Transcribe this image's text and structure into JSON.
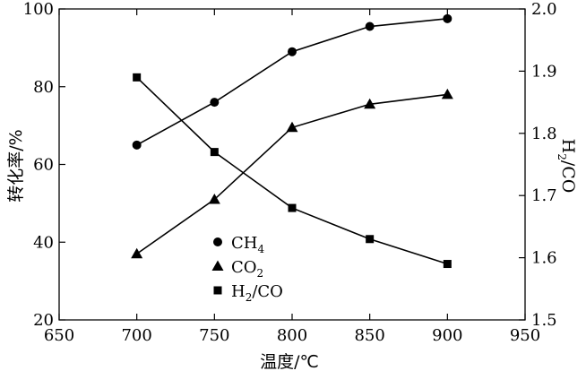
{
  "chart_data": {
    "type": "line",
    "x": [
      700,
      750,
      800,
      850,
      900
    ],
    "xlabel": "温度/℃",
    "ylabel_left": "转化率/%",
    "ylabel_right": {
      "main": "H",
      "sub": "2",
      "rest": "/CO"
    },
    "xlim": [
      650,
      950
    ],
    "ylim_left": [
      20,
      100
    ],
    "ylim_right": [
      1.5,
      2.0
    ],
    "x_ticks": [
      650,
      700,
      750,
      800,
      850,
      900,
      950
    ],
    "y_left_ticks": [
      20,
      40,
      60,
      80,
      100
    ],
    "y_right_ticks": [
      "1.5",
      "1.6",
      "1.7",
      "1.8",
      "1.9",
      "2.0"
    ],
    "grid": false,
    "legend_position": "lower-center",
    "series": [
      {
        "name": "CH",
        "sub": "4",
        "axis": "left",
        "marker": "circle",
        "values": [
          65,
          76,
          89,
          95.5,
          97.5
        ]
      },
      {
        "name": "CO",
        "sub": "2",
        "axis": "left",
        "marker": "triangle",
        "values": [
          37,
          51,
          69.5,
          75.5,
          78
        ]
      },
      {
        "name": "H",
        "sub": "2",
        "suffix": "/CO",
        "axis": "right",
        "marker": "square",
        "values": [
          1.89,
          1.77,
          1.68,
          1.63,
          1.59
        ]
      }
    ]
  }
}
